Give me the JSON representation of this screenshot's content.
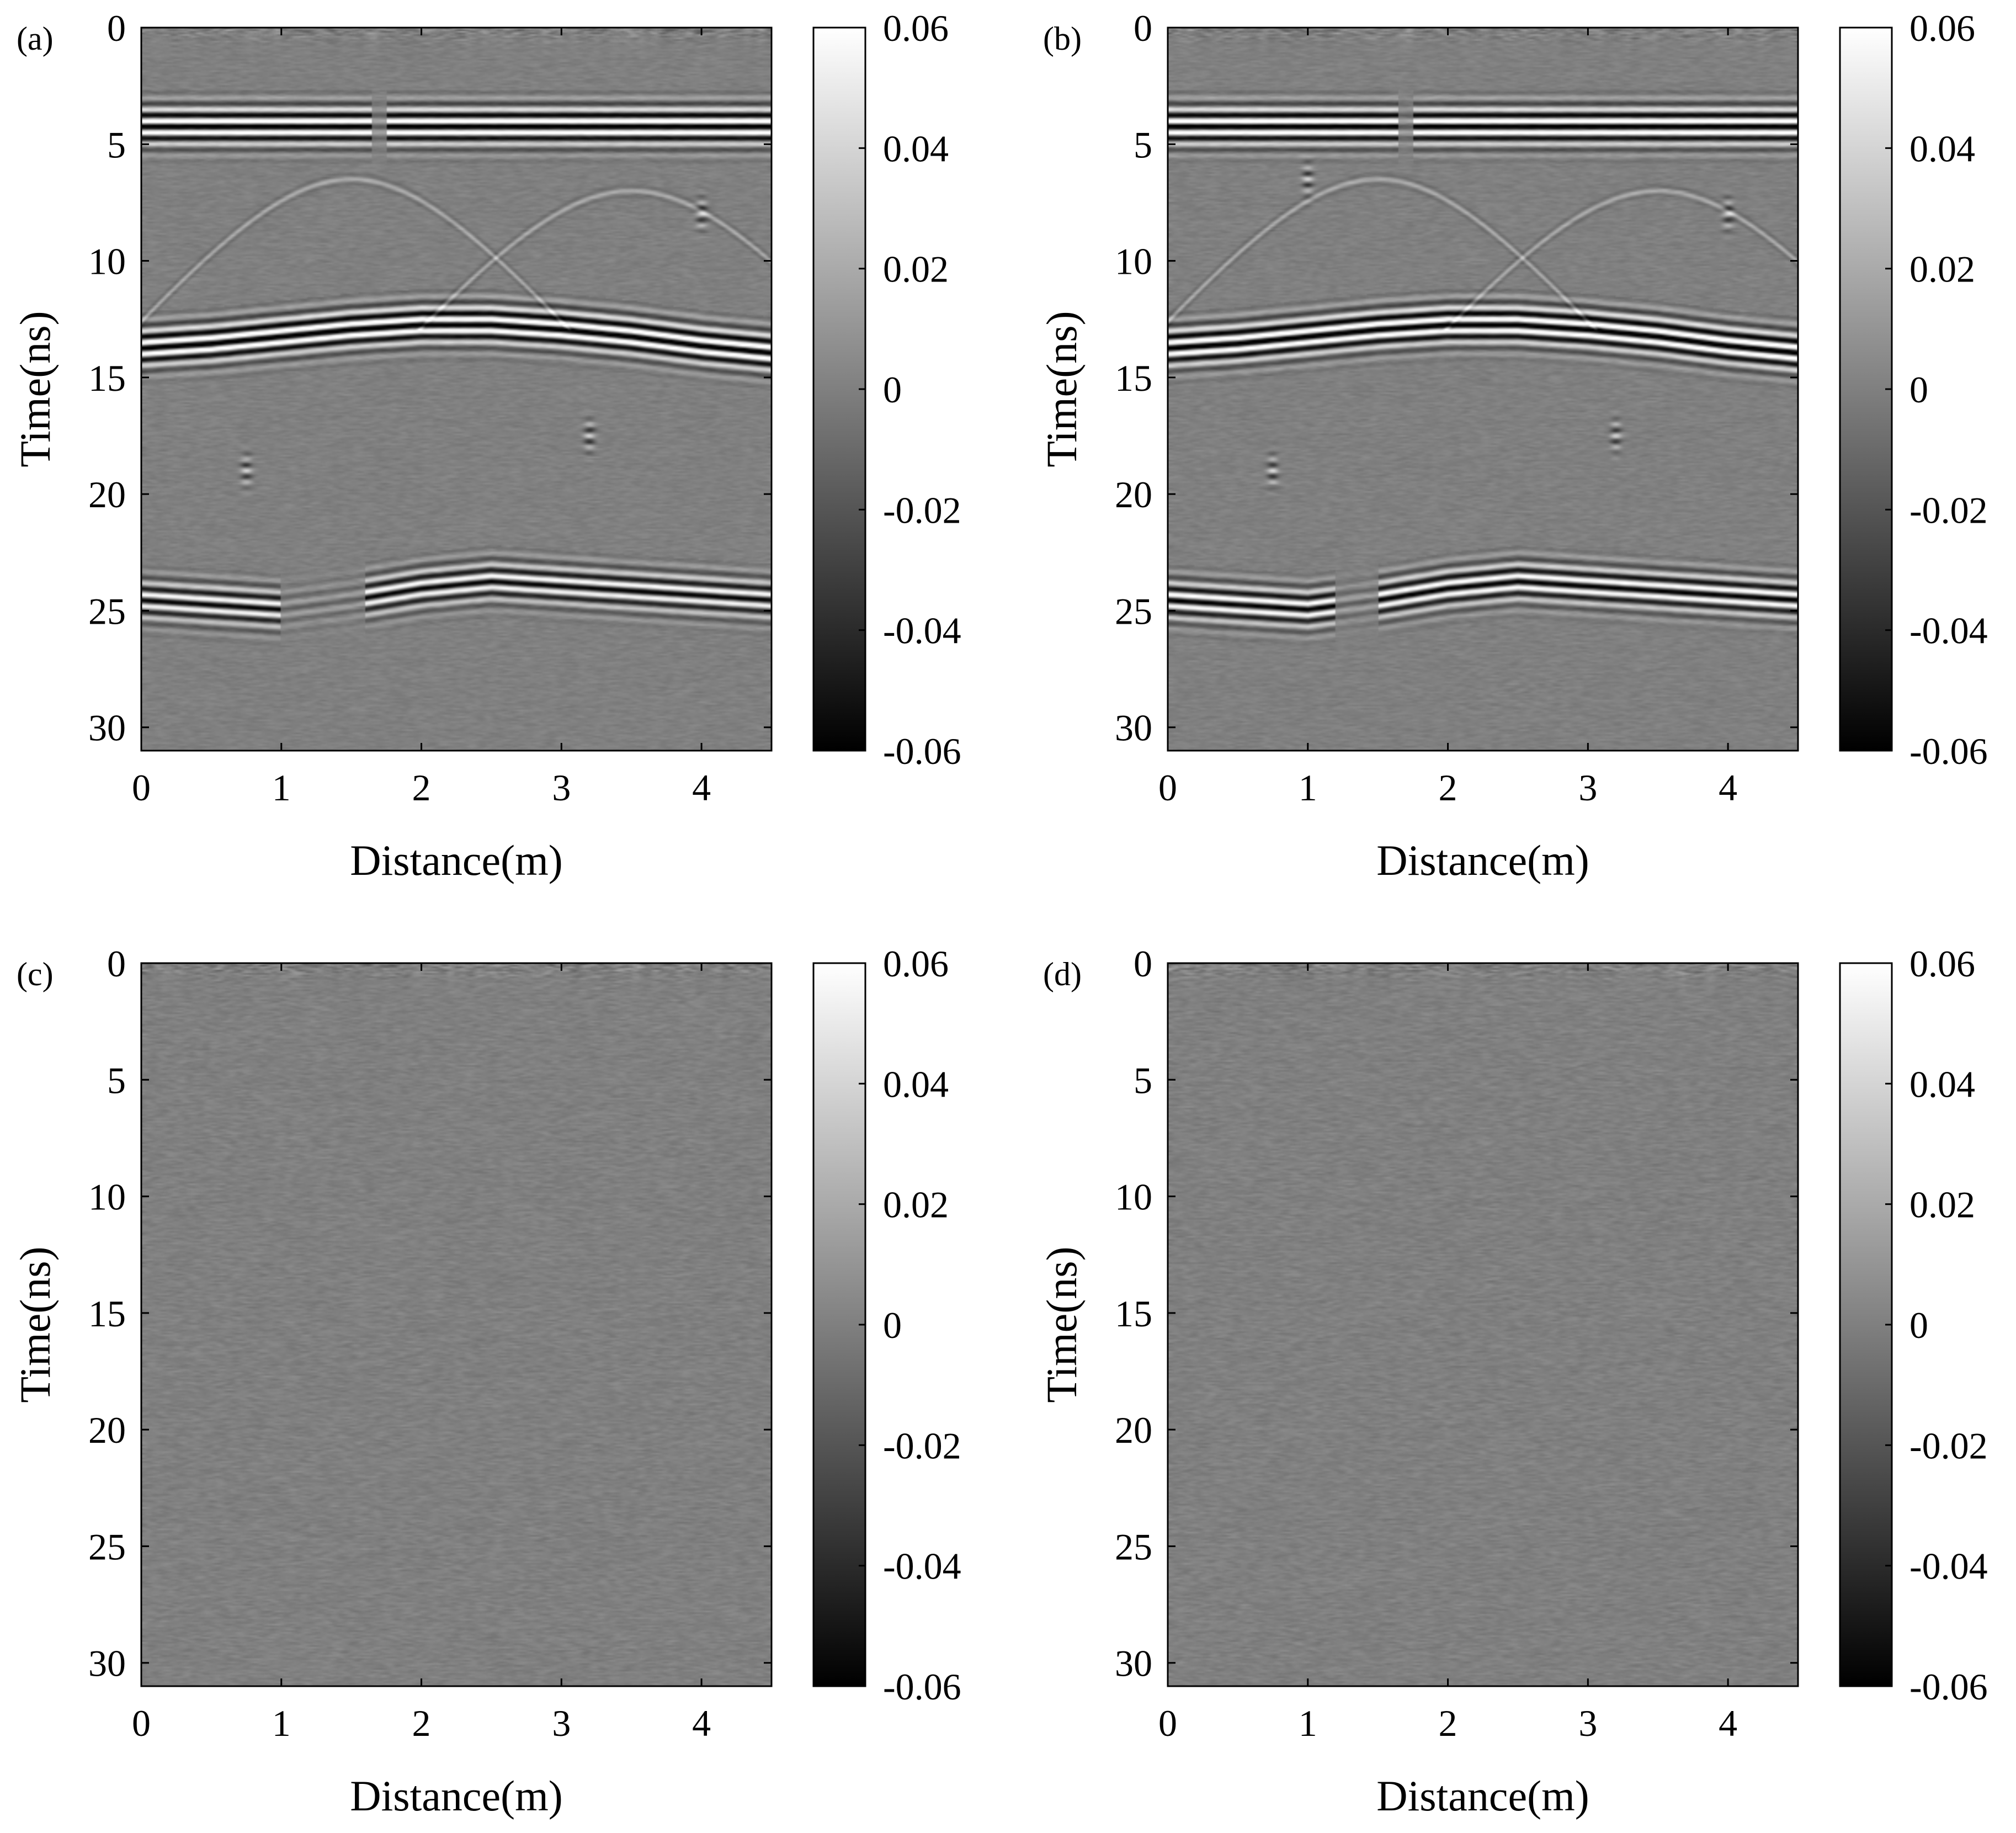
{
  "chart_data": [
    {
      "panel_label": "(a)",
      "type": "heatmap",
      "xlabel": "Distance(m)",
      "ylabel": "Time(ns)",
      "xlim": [
        0,
        4.5
      ],
      "ylim": [
        31,
        0
      ],
      "x_ticks": [
        "0",
        "1",
        "2",
        "3",
        "4"
      ],
      "y_ticks": [
        "0",
        "5",
        "10",
        "15",
        "20",
        "25",
        "30"
      ],
      "colorbar": {
        "colormap": "gray",
        "range": [
          -0.06,
          0.06
        ],
        "ticks": [
          "0.06",
          "0.04",
          "0.02",
          "0",
          "-0.02",
          "-0.04",
          "-0.06"
        ]
      },
      "reflectors": [
        {
          "times_ns": [
            3.5,
            3.5,
            3.5,
            3.5,
            3.5,
            3.5,
            3.5,
            3.5,
            3.5,
            3.5
          ],
          "amplitude": 1.0,
          "gaps_m": [
            [
              1.65,
              1.75
            ]
          ]
        },
        {
          "times_ns": [
            13.0,
            12.8,
            12.5,
            12.2,
            12.0,
            12.0,
            12.2,
            12.5,
            12.9,
            13.2
          ],
          "amplitude": 1.0,
          "gaps_m": []
        },
        {
          "times_ns": [
            23.8,
            24.0,
            24.2,
            23.8,
            23.3,
            23.0,
            23.2,
            23.4,
            23.6,
            23.8
          ],
          "amplitude": 0.8,
          "gaps_m": [
            [
              1.0,
              1.6
            ]
          ]
        }
      ],
      "diffractions": [
        {
          "x_m": 1.5,
          "t_ns": 6.5
        },
        {
          "x_m": 3.5,
          "t_ns": 7.0
        }
      ],
      "point_targets": [
        {
          "x_m": 0.75,
          "t_ns": 19.0
        },
        {
          "x_m": 3.2,
          "t_ns": 17.5
        },
        {
          "x_m": 4.0,
          "t_ns": 8.0
        }
      ],
      "noise_level": 0.12
    },
    {
      "panel_label": "(b)",
      "type": "heatmap",
      "xlabel": "Distance(m)",
      "ylabel": "Time(ns)",
      "xlim": [
        0,
        4.5
      ],
      "ylim": [
        31,
        0
      ],
      "x_ticks": [
        "0",
        "1",
        "2",
        "3",
        "4"
      ],
      "y_ticks": [
        "0",
        "5",
        "10",
        "15",
        "20",
        "25",
        "30"
      ],
      "colorbar": {
        "colormap": "gray",
        "range": [
          -0.06,
          0.06
        ],
        "ticks": [
          "0.06",
          "0.04",
          "0.02",
          "0",
          "-0.02",
          "-0.04",
          "-0.06"
        ]
      },
      "reflectors": [
        {
          "times_ns": [
            3.5,
            3.5,
            3.5,
            3.5,
            3.5,
            3.5,
            3.5,
            3.5,
            3.5,
            3.5
          ],
          "amplitude": 1.0,
          "gaps_m": [
            [
              1.65,
              1.75
            ]
          ]
        },
        {
          "times_ns": [
            13.0,
            12.8,
            12.5,
            12.2,
            12.0,
            12.0,
            12.2,
            12.5,
            12.9,
            13.2
          ],
          "amplitude": 1.0,
          "gaps_m": []
        },
        {
          "times_ns": [
            23.8,
            24.0,
            24.2,
            23.8,
            23.3,
            23.0,
            23.2,
            23.4,
            23.6,
            23.8
          ],
          "amplitude": 0.85,
          "gaps_m": [
            [
              1.2,
              1.5
            ]
          ]
        }
      ],
      "diffractions": [
        {
          "x_m": 1.5,
          "t_ns": 6.5
        },
        {
          "x_m": 3.5,
          "t_ns": 7.0
        }
      ],
      "point_targets": [
        {
          "x_m": 0.75,
          "t_ns": 19.0
        },
        {
          "x_m": 1.0,
          "t_ns": 6.5
        },
        {
          "x_m": 3.2,
          "t_ns": 17.5
        },
        {
          "x_m": 4.0,
          "t_ns": 8.0
        }
      ],
      "noise_level": 0.12
    },
    {
      "panel_label": "(c)",
      "type": "heatmap",
      "xlabel": "Distance(m)",
      "ylabel": "Time(ns)",
      "xlim": [
        0,
        4.5
      ],
      "ylim": [
        31,
        0
      ],
      "x_ticks": [
        "0",
        "1",
        "2",
        "3",
        "4"
      ],
      "y_ticks": [
        "0",
        "5",
        "10",
        "15",
        "20",
        "25",
        "30"
      ],
      "colorbar": {
        "colormap": "gray",
        "range": [
          -0.06,
          0.06
        ],
        "ticks": [
          "0.06",
          "0.04",
          "0.02",
          "0",
          "-0.02",
          "-0.04",
          "-0.06"
        ]
      },
      "reflectors": [],
      "diffractions": [],
      "point_targets": [],
      "noise_level": 0.14
    },
    {
      "panel_label": "(d)",
      "type": "heatmap",
      "xlabel": "Distance(m)",
      "ylabel": "Time(ns)",
      "xlim": [
        0,
        4.5
      ],
      "ylim": [
        31,
        0
      ],
      "x_ticks": [
        "0",
        "1",
        "2",
        "3",
        "4"
      ],
      "y_ticks": [
        "0",
        "5",
        "10",
        "15",
        "20",
        "25",
        "30"
      ],
      "colorbar": {
        "colormap": "gray",
        "range": [
          -0.06,
          0.06
        ],
        "ticks": [
          "0.06",
          "0.04",
          "0.02",
          "0",
          "-0.02",
          "-0.04",
          "-0.06"
        ]
      },
      "reflectors": [],
      "diffractions": [],
      "point_targets": [],
      "noise_level": 0.14
    }
  ]
}
